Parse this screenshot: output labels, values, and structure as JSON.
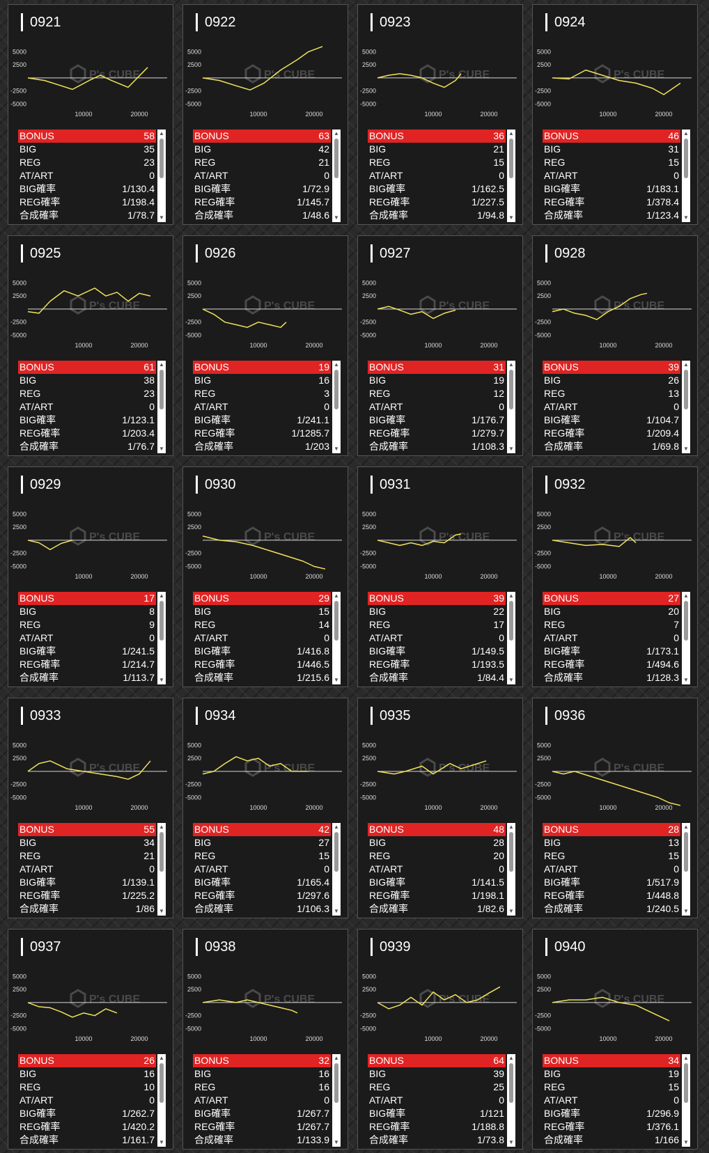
{
  "labels": {
    "bonus": "BONUS",
    "big": "BIG",
    "reg": "REG",
    "atart": "AT/ART",
    "big_rate": "BIG確率",
    "reg_rate": "REG確率",
    "total_rate": "合成確率"
  },
  "watermark": {
    "text": "P's CUBE",
    "icon": "cube-logo-icon"
  },
  "colors": {
    "line": "#f0e35a",
    "bonus_bar": "#e02424",
    "background": "#1b1b1b"
  },
  "chart_data": {
    "type": "line",
    "x_ticks": [
      "10000",
      "20000"
    ],
    "y_ticks": [
      "5000",
      "2500",
      "-2500",
      "-5000"
    ],
    "xlim": [
      0,
      25000
    ],
    "ylim": [
      -6000,
      6500
    ],
    "machines": [
      {
        "id": "0921",
        "bonus": "58",
        "big": "35",
        "reg": "23",
        "atart": "0",
        "big_rate": "1/130.4",
        "reg_rate": "1/198.4",
        "total_rate": "1/78.7",
        "x": [
          0,
          3000,
          6000,
          8000,
          11000,
          13000,
          15000,
          18000,
          21500
        ],
        "y": [
          0,
          -500,
          -1500,
          -2200,
          -500,
          500,
          -500,
          -1800,
          2000
        ]
      },
      {
        "id": "0922",
        "bonus": "63",
        "big": "42",
        "reg": "21",
        "atart": "0",
        "big_rate": "1/72.9",
        "reg_rate": "1/145.7",
        "total_rate": "1/48.6",
        "x": [
          0,
          3000,
          6000,
          8500,
          11000,
          14000,
          17000,
          19000,
          21500
        ],
        "y": [
          0,
          -500,
          -1500,
          -2300,
          -1000,
          1500,
          3500,
          5000,
          6000
        ]
      },
      {
        "id": "0923",
        "bonus": "36",
        "big": "21",
        "reg": "15",
        "atart": "0",
        "big_rate": "1/162.5",
        "reg_rate": "1/227.5",
        "total_rate": "1/94.8",
        "x": [
          0,
          2000,
          4000,
          6000,
          8000,
          10000,
          12000,
          14000,
          15000
        ],
        "y": [
          0,
          500,
          800,
          500,
          0,
          -1000,
          -1800,
          -500,
          800
        ]
      },
      {
        "id": "0924",
        "bonus": "46",
        "big": "31",
        "reg": "15",
        "atart": "0",
        "big_rate": "1/183.1",
        "reg_rate": "1/378.4",
        "total_rate": "1/123.4",
        "x": [
          0,
          3000,
          6000,
          9000,
          12000,
          15000,
          18000,
          20000,
          23000
        ],
        "y": [
          0,
          -200,
          1500,
          500,
          -500,
          -1000,
          -2000,
          -3200,
          -1000
        ]
      },
      {
        "id": "0925",
        "bonus": "61",
        "big": "38",
        "reg": "23",
        "atart": "0",
        "big_rate": "1/123.1",
        "reg_rate": "1/203.4",
        "total_rate": "1/76.7",
        "x": [
          0,
          2000,
          4000,
          6500,
          9000,
          12000,
          14000,
          16000,
          18000,
          20000,
          22000
        ],
        "y": [
          -500,
          -800,
          1500,
          3500,
          2500,
          4000,
          2500,
          3200,
          1500,
          3000,
          2500
        ]
      },
      {
        "id": "0926",
        "bonus": "19",
        "big": "16",
        "reg": "3",
        "atart": "0",
        "big_rate": "1/241.1",
        "reg_rate": "1/1285.7",
        "total_rate": "1/203",
        "x": [
          0,
          2000,
          4000,
          6000,
          8000,
          10000,
          12000,
          14000,
          15000
        ],
        "y": [
          0,
          -1000,
          -2500,
          -3000,
          -3500,
          -2500,
          -3000,
          -3500,
          -2500
        ]
      },
      {
        "id": "0927",
        "bonus": "31",
        "big": "19",
        "reg": "12",
        "atart": "0",
        "big_rate": "1/176.7",
        "reg_rate": "1/279.7",
        "total_rate": "1/108.3",
        "x": [
          0,
          2000,
          4000,
          6000,
          8000,
          10000,
          12000,
          14000
        ],
        "y": [
          0,
          500,
          -200,
          -1000,
          -500,
          -1800,
          -800,
          -200
        ]
      },
      {
        "id": "0928",
        "bonus": "39",
        "big": "26",
        "reg": "13",
        "atart": "0",
        "big_rate": "1/104.7",
        "reg_rate": "1/209.4",
        "total_rate": "1/69.8",
        "x": [
          0,
          2000,
          4000,
          6000,
          8000,
          10000,
          12000,
          14000,
          16000,
          17000
        ],
        "y": [
          -500,
          0,
          -800,
          -1200,
          -2000,
          -500,
          500,
          2000,
          2800,
          3000
        ]
      },
      {
        "id": "0929",
        "bonus": "17",
        "big": "8",
        "reg": "9",
        "atart": "0",
        "big_rate": "1/241.5",
        "reg_rate": "1/214.7",
        "total_rate": "1/113.7",
        "x": [
          0,
          2000,
          4000,
          6000,
          8000
        ],
        "y": [
          0,
          -500,
          -1800,
          -600,
          0
        ]
      },
      {
        "id": "0930",
        "bonus": "29",
        "big": "15",
        "reg": "14",
        "atart": "0",
        "big_rate": "1/416.8",
        "reg_rate": "1/446.5",
        "total_rate": "1/215.6",
        "x": [
          0,
          3000,
          6000,
          9000,
          12000,
          15000,
          18000,
          20000,
          22000
        ],
        "y": [
          800,
          0,
          -300,
          -1000,
          -2000,
          -3000,
          -4000,
          -5000,
          -5500
        ]
      },
      {
        "id": "0931",
        "bonus": "39",
        "big": "22",
        "reg": "17",
        "atart": "0",
        "big_rate": "1/149.5",
        "reg_rate": "1/193.5",
        "total_rate": "1/84.4",
        "x": [
          0,
          2000,
          4000,
          6000,
          8000,
          10000,
          12000,
          14000,
          15000
        ],
        "y": [
          0,
          -500,
          -1000,
          -500,
          -1000,
          -200,
          -500,
          1000,
          1200
        ]
      },
      {
        "id": "0932",
        "bonus": "27",
        "big": "20",
        "reg": "7",
        "atart": "0",
        "big_rate": "1/173.1",
        "reg_rate": "1/494.6",
        "total_rate": "1/128.3",
        "x": [
          0,
          3000,
          6000,
          9000,
          12000,
          14000,
          15000
        ],
        "y": [
          0,
          -500,
          -1000,
          -800,
          -1200,
          500,
          -500
        ]
      },
      {
        "id": "0933",
        "bonus": "55",
        "big": "34",
        "reg": "21",
        "atart": "0",
        "big_rate": "1/139.1",
        "reg_rate": "1/225.2",
        "total_rate": "1/86",
        "x": [
          0,
          2000,
          4000,
          7000,
          10000,
          13000,
          16000,
          18000,
          20000,
          22000
        ],
        "y": [
          0,
          1500,
          2000,
          500,
          0,
          -500,
          -1000,
          -1500,
          -500,
          2000
        ]
      },
      {
        "id": "0934",
        "bonus": "42",
        "big": "27",
        "reg": "15",
        "atart": "0",
        "big_rate": "1/165.4",
        "reg_rate": "1/297.6",
        "total_rate": "1/106.3",
        "x": [
          0,
          2000,
          4000,
          6000,
          8000,
          10000,
          12000,
          14000,
          16000,
          19000
        ],
        "y": [
          -500,
          0,
          1500,
          2800,
          2000,
          2500,
          1000,
          1500,
          0,
          0
        ]
      },
      {
        "id": "0935",
        "bonus": "48",
        "big": "28",
        "reg": "20",
        "atart": "0",
        "big_rate": "1/141.5",
        "reg_rate": "1/198.1",
        "total_rate": "1/82.6",
        "x": [
          0,
          3000,
          5000,
          8000,
          10000,
          13000,
          15000,
          18000,
          19500
        ],
        "y": [
          0,
          -500,
          0,
          1000,
          -500,
          1500,
          500,
          1500,
          2000
        ]
      },
      {
        "id": "0936",
        "bonus": "28",
        "big": "13",
        "reg": "15",
        "atart": "0",
        "big_rate": "1/517.9",
        "reg_rate": "1/448.8",
        "total_rate": "1/240.5",
        "x": [
          0,
          2000,
          4000,
          7000,
          10000,
          13000,
          16000,
          19000,
          21000,
          23000
        ],
        "y": [
          0,
          -500,
          0,
          -1000,
          -2000,
          -3000,
          -4000,
          -5000,
          -6000,
          -6500
        ]
      },
      {
        "id": "0937",
        "bonus": "26",
        "big": "16",
        "reg": "10",
        "atart": "0",
        "big_rate": "1/262.7",
        "reg_rate": "1/420.2",
        "total_rate": "1/161.7",
        "x": [
          0,
          2000,
          4000,
          6000,
          8000,
          10000,
          12000,
          14000,
          16000
        ],
        "y": [
          0,
          -800,
          -1000,
          -1800,
          -2800,
          -2000,
          -2500,
          -1200,
          -2000
        ]
      },
      {
        "id": "0938",
        "bonus": "32",
        "big": "16",
        "reg": "16",
        "atart": "0",
        "big_rate": "1/267.7",
        "reg_rate": "1/267.7",
        "total_rate": "1/133.9",
        "x": [
          0,
          3000,
          6000,
          8000,
          10000,
          12000,
          14000,
          16000,
          17000
        ],
        "y": [
          0,
          500,
          0,
          500,
          0,
          -500,
          -1000,
          -1500,
          -2000
        ]
      },
      {
        "id": "0939",
        "bonus": "64",
        "big": "39",
        "reg": "25",
        "atart": "0",
        "big_rate": "1/121",
        "reg_rate": "1/188.8",
        "total_rate": "1/73.8",
        "x": [
          0,
          2000,
          4000,
          6000,
          8000,
          10000,
          12000,
          14000,
          16000,
          18000,
          20000,
          22000
        ],
        "y": [
          0,
          -1200,
          -500,
          1000,
          -500,
          2000,
          500,
          1500,
          0,
          500,
          1800,
          3000
        ]
      },
      {
        "id": "0940",
        "bonus": "34",
        "big": "19",
        "reg": "15",
        "atart": "0",
        "big_rate": "1/296.9",
        "reg_rate": "1/376.1",
        "total_rate": "1/166",
        "x": [
          0,
          3000,
          6000,
          9000,
          12000,
          15000,
          17000,
          19000,
          21000
        ],
        "y": [
          0,
          500,
          500,
          1000,
          0,
          -500,
          -1500,
          -2500,
          -3500
        ]
      }
    ]
  }
}
